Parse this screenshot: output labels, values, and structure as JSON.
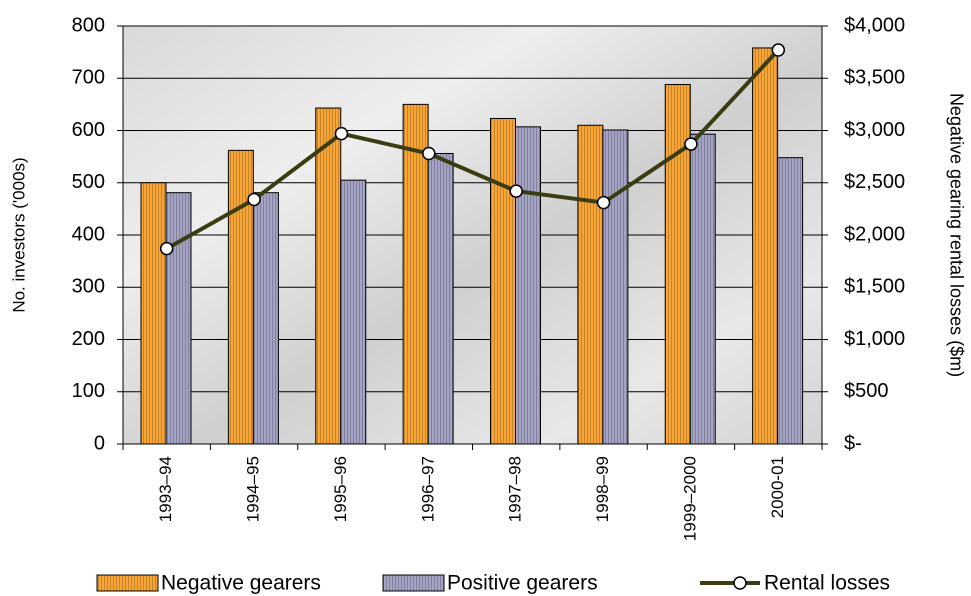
{
  "chart_data": {
    "type": "bar",
    "y_label": "No.  investors  ('000s)",
    "y2_label": "Negative gearing rental losses ($m)",
    "categories": [
      "1993–94",
      "1994–95",
      "1995–96",
      "1996–97",
      "1997–98",
      "1998–99",
      "1999–2000",
      "2000-01"
    ],
    "series": [
      {
        "name": "Negative gearers",
        "color": "#f7a536",
        "values": [
          500,
          562,
          643,
          650,
          623,
          610,
          688,
          758
        ]
      },
      {
        "name": "Positive gearers",
        "color": "#a3a3c4",
        "values": [
          481,
          481,
          505,
          556,
          607,
          601,
          593,
          548
        ]
      },
      {
        "name": "Rental losses",
        "type": "line",
        "axis": "y2",
        "color": "#3c3c12",
        "values": [
          1870,
          2340,
          2970,
          2780,
          2420,
          2310,
          2870,
          3770
        ]
      }
    ],
    "ylim": [
      0,
      800
    ],
    "yticks": [
      0,
      100,
      200,
      300,
      400,
      500,
      600,
      700,
      800
    ],
    "y2lim": [
      0,
      4000
    ],
    "y2ticks": [
      {
        "value": 0,
        "label": "$-"
      },
      {
        "value": 500,
        "label": "$500"
      },
      {
        "value": 1000,
        "label": "$1,000"
      },
      {
        "value": 1500,
        "label": "$1,500"
      },
      {
        "value": 2000,
        "label": "$2,000"
      },
      {
        "value": 2500,
        "label": "$2,500"
      },
      {
        "value": 3000,
        "label": "$3,000"
      },
      {
        "value": 3500,
        "label": "$3,500"
      },
      {
        "value": 4000,
        "label": "$4,000"
      }
    ],
    "grid": true,
    "legend": "bottom"
  }
}
